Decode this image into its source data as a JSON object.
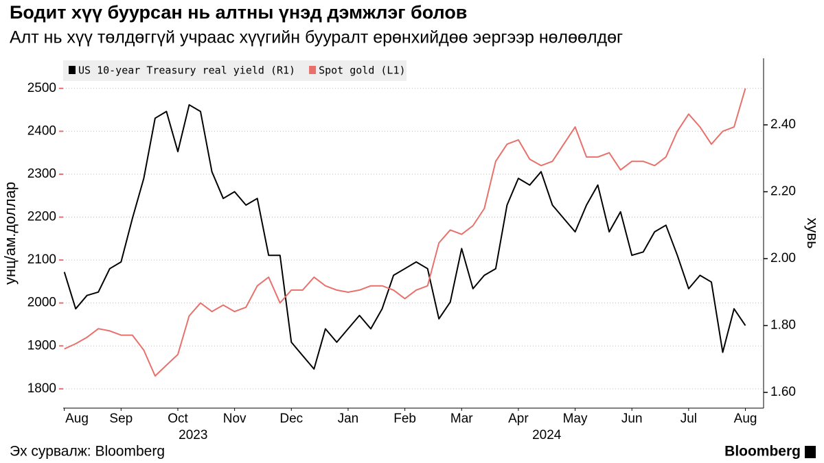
{
  "chart_data": {
    "type": "line",
    "title": "Бодит хүү буурсан нь алтны үнэд дэмжлэг болов",
    "subtitle": "Алт нь хүү төлдөггүй учраас хүүгийн бууралт ерөнхийдөө эергээр нөлөөлдөг",
    "ylabel": "унц/ам.доллар",
    "y2label": "хувь",
    "source": "Эх сурвалж: Bloomberg",
    "brand": "Bloomberg",
    "legend": "upper left",
    "grid": true,
    "xlim": [
      -0.02,
      12.32
    ],
    "xticks": [
      {
        "value": 0,
        "label": "Aug"
      },
      {
        "value": 1,
        "label": "Sep"
      },
      {
        "value": 2,
        "label": "Oct"
      },
      {
        "value": 3,
        "label": "Nov"
      },
      {
        "value": 4,
        "label": "Dec"
      },
      {
        "value": 5,
        "label": "Jan"
      },
      {
        "value": 6,
        "label": "Feb"
      },
      {
        "value": 7,
        "label": "Mar"
      },
      {
        "value": 8,
        "label": "Apr"
      },
      {
        "value": 9,
        "label": "May"
      },
      {
        "value": 10,
        "label": "Jun"
      },
      {
        "value": 11,
        "label": "Jul"
      },
      {
        "value": 12,
        "label": "Aug"
      }
    ],
    "xticks_year": [
      {
        "value": 2.27,
        "label": "2023"
      },
      {
        "value": 8.5,
        "label": "2024"
      }
    ],
    "ylim": [
      1755,
      2570
    ],
    "yticks": [
      1800,
      1900,
      2000,
      2100,
      2200,
      2300,
      2400,
      2500
    ],
    "y2lim": [
      1.553,
      2.599
    ],
    "y2ticks": [
      {
        "value": 1.6,
        "label": "1.60"
      },
      {
        "value": 1.8,
        "label": "1.80"
      },
      {
        "value": 2.0,
        "label": "2.00"
      },
      {
        "value": 2.2,
        "label": "2.20"
      },
      {
        "value": 2.4,
        "label": "2.40"
      }
    ],
    "x": [
      0,
      0.2,
      0.4,
      0.6,
      0.8,
      1,
      1.2,
      1.4,
      1.6,
      1.8,
      2,
      2.2,
      2.4,
      2.6,
      2.8,
      3,
      3.2,
      3.4,
      3.6,
      3.8,
      4,
      4.2,
      4.4,
      4.6,
      4.8,
      5,
      5.2,
      5.4,
      5.6,
      5.8,
      6,
      6.2,
      6.4,
      6.6,
      6.8,
      7,
      7.2,
      7.4,
      7.6,
      7.8,
      8,
      8.2,
      8.4,
      8.6,
      8.8,
      9,
      9.2,
      9.4,
      9.6,
      9.8,
      10,
      10.2,
      10.4,
      10.6,
      10.8,
      11,
      11.2,
      11.4,
      11.6,
      11.8,
      12
    ],
    "series": [
      {
        "name": "US 10-year Treasury real yield (R1)",
        "color": "#000000",
        "axis": "y2",
        "values": [
          1.96,
          1.85,
          1.89,
          1.9,
          1.97,
          1.99,
          2.12,
          2.24,
          2.42,
          2.44,
          2.32,
          2.46,
          2.44,
          2.26,
          2.18,
          2.2,
          2.16,
          2.18,
          2.01,
          2.01,
          1.75,
          1.71,
          1.67,
          1.79,
          1.75,
          1.79,
          1.83,
          1.79,
          1.85,
          1.95,
          1.97,
          1.99,
          1.97,
          1.82,
          1.87,
          2.03,
          1.91,
          1.95,
          1.97,
          2.16,
          2.24,
          2.22,
          2.26,
          2.16,
          2.12,
          2.08,
          2.16,
          2.22,
          2.08,
          2.14,
          2.01,
          2.02,
          2.08,
          2.1,
          2.01,
          1.91,
          1.95,
          1.93,
          1.72,
          1.85,
          1.8
        ]
      },
      {
        "name": "Spot gold (L1)",
        "color": "#e8706b",
        "values": [
          1893,
          1905,
          1920,
          1940,
          1935,
          1925,
          1925,
          1890,
          1830,
          1855,
          1880,
          1970,
          2000,
          1980,
          1995,
          1980,
          1990,
          2040,
          2060,
          2000,
          2030,
          2030,
          2060,
          2040,
          2030,
          2025,
          2030,
          2040,
          2040,
          2030,
          2010,
          2030,
          2040,
          2140,
          2170,
          2160,
          2180,
          2220,
          2330,
          2370,
          2380,
          2335,
          2320,
          2330,
          2370,
          2410,
          2340,
          2340,
          2350,
          2310,
          2330,
          2330,
          2320,
          2340,
          2400,
          2440,
          2410,
          2370,
          2400,
          2410,
          2500
        ]
      }
    ]
  }
}
